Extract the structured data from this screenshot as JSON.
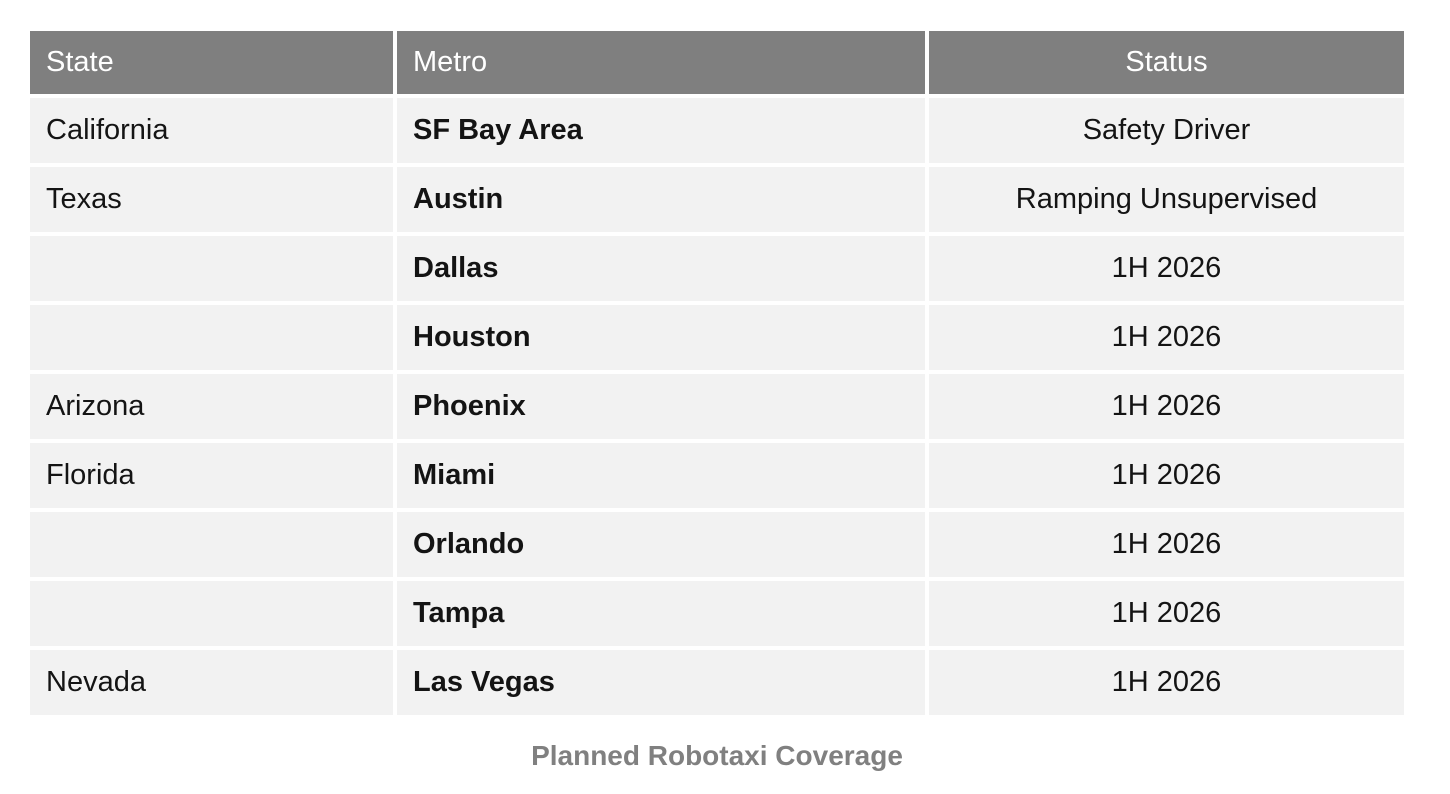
{
  "caption": "Planned Robotaxi Coverage",
  "table": {
    "columns": [
      {
        "key": "state",
        "label": "State",
        "align": "left"
      },
      {
        "key": "metro",
        "label": "Metro",
        "align": "left"
      },
      {
        "key": "status",
        "label": "Status",
        "align": "center"
      }
    ],
    "rows": [
      {
        "state": "California",
        "metro": "SF Bay Area",
        "status": "Safety Driver"
      },
      {
        "state": "Texas",
        "metro": "Austin",
        "status": "Ramping Unsupervised"
      },
      {
        "state": "",
        "metro": "Dallas",
        "status": "1H 2026"
      },
      {
        "state": "",
        "metro": "Houston",
        "status": "1H 2026"
      },
      {
        "state": "Arizona",
        "metro": "Phoenix",
        "status": "1H 2026"
      },
      {
        "state": "Florida",
        "metro": "Miami",
        "status": "1H 2026"
      },
      {
        "state": "",
        "metro": "Orlando",
        "status": "1H 2026"
      },
      {
        "state": "",
        "metro": "Tampa",
        "status": "1H 2026"
      },
      {
        "state": "Nevada",
        "metro": "Las Vegas",
        "status": "1H 2026"
      }
    ]
  },
  "colors": {
    "header_bg": "#7f7f7f",
    "header_text": "#ffffff",
    "row_bg": "#f2f2f2",
    "body_text": "#141414",
    "gutter": "#ffffff",
    "caption_text": "#808080"
  },
  "chart_data": {
    "type": "table",
    "title": "Planned Robotaxi Coverage",
    "columns": [
      "State",
      "Metro",
      "Status"
    ],
    "rows": [
      [
        "California",
        "SF Bay Area",
        "Safety Driver"
      ],
      [
        "Texas",
        "Austin",
        "Ramping Unsupervised"
      ],
      [
        "",
        "Dallas",
        "1H 2026"
      ],
      [
        "",
        "Houston",
        "1H 2026"
      ],
      [
        "Arizona",
        "Phoenix",
        "1H 2026"
      ],
      [
        "Florida",
        "Miami",
        "1H 2026"
      ],
      [
        "",
        "Orlando",
        "1H 2026"
      ],
      [
        "",
        "Tampa",
        "1H 2026"
      ],
      [
        "Nevada",
        "Las Vegas",
        "1H 2026"
      ]
    ]
  }
}
